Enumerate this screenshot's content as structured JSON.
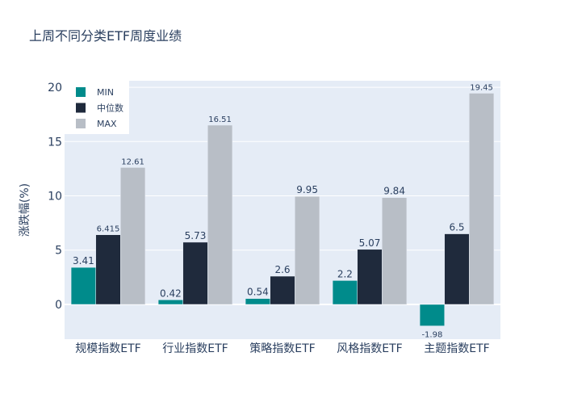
{
  "chart_data": {
    "type": "bar",
    "title": "上周不同分类ETF周度业绩",
    "xlabel": "",
    "ylabel": "涨跌幅(%)",
    "categories": [
      "规模指数ETF",
      "行业指数ETF",
      "策略指数ETF",
      "风格指数ETF",
      "主题指数ETF"
    ],
    "series": [
      {
        "name": "MIN",
        "color": "#008b8b",
        "values": [
          3.41,
          0.42,
          0.54,
          2.2,
          -1.98
        ],
        "labels": [
          "3.41",
          "0.42",
          "0.54",
          "2.2",
          "-1.98"
        ]
      },
      {
        "name": "中位数",
        "color": "#1f2a3c",
        "values": [
          6.415,
          5.73,
          2.6,
          5.07,
          6.5
        ],
        "labels": [
          "6.415",
          "5.73",
          "2.6",
          "5.07",
          "6.5"
        ]
      },
      {
        "name": "MAX",
        "color": "#b8bec6",
        "values": [
          12.61,
          16.51,
          9.95,
          9.84,
          19.45
        ],
        "labels": [
          "12.61",
          "16.51",
          "9.95",
          "9.84",
          "19.45"
        ]
      }
    ],
    "ylim": [
      -3.2,
      20.6
    ],
    "yticks": [
      0,
      5,
      10,
      15,
      20
    ],
    "grid": true,
    "legend_position": "top-left",
    "plot_bgcolor": "#e5ecf6"
  }
}
